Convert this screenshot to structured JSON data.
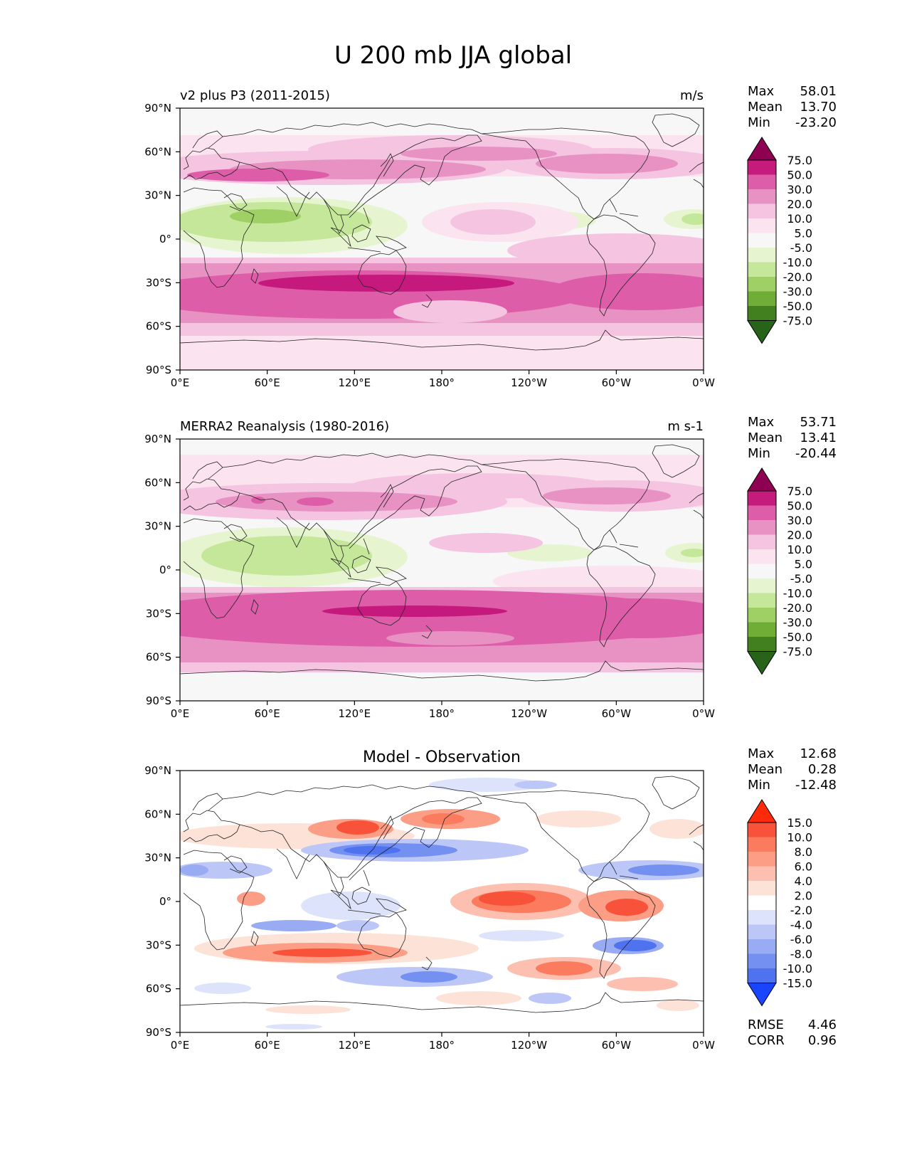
{
  "figure": {
    "title": "U 200 mb JJA global",
    "lat_ticks": [
      "90°N",
      "60°N",
      "30°N",
      "0°",
      "30°S",
      "60°S",
      "90°S"
    ],
    "lon_ticks": [
      "0°E",
      "60°E",
      "120°E",
      "180°",
      "120°W",
      "60°W",
      "0°W"
    ]
  },
  "panels": [
    {
      "id": "test",
      "left_title": "v2 plus P3 (2011-2015)",
      "center_title": "",
      "units": "m/s",
      "stats": [
        {
          "label": "Max",
          "value": "58.01"
        },
        {
          "label": "Mean",
          "value": "13.70"
        },
        {
          "label": "Min",
          "value": "-23.20"
        }
      ],
      "colorbar": {
        "labels": [
          "75.0",
          "50.0",
          "30.0",
          "20.0",
          "10.0",
          "5.0",
          "-5.0",
          "-10.0",
          "-20.0",
          "-30.0",
          "-50.0",
          "-75.0"
        ],
        "colors": [
          "#8e0152",
          "#c51b7d",
          "#de5da8",
          "#e792c3",
          "#f5c4e1",
          "#fbe3ef",
          "#f7f7f7",
          "#e6f5d0",
          "#c5e79a",
          "#9fd066",
          "#6fad36",
          "#417f1f",
          "#276419"
        ]
      },
      "extra_stats": []
    },
    {
      "id": "reference",
      "left_title": "MERRA2 Reanalysis (1980-2016)",
      "center_title": "",
      "units": "m s-1",
      "stats": [
        {
          "label": "Max",
          "value": "53.71"
        },
        {
          "label": "Mean",
          "value": "13.41"
        },
        {
          "label": "Min",
          "value": "-20.44"
        }
      ],
      "colorbar": {
        "labels": [
          "75.0",
          "50.0",
          "30.0",
          "20.0",
          "10.0",
          "5.0",
          "-5.0",
          "-10.0",
          "-20.0",
          "-30.0",
          "-50.0",
          "-75.0"
        ],
        "colors": [
          "#8e0152",
          "#c51b7d",
          "#de5da8",
          "#e792c3",
          "#f5c4e1",
          "#fbe3ef",
          "#f7f7f7",
          "#e6f5d0",
          "#c5e79a",
          "#9fd066",
          "#6fad36",
          "#417f1f",
          "#276419"
        ]
      },
      "extra_stats": []
    },
    {
      "id": "difference",
      "left_title": "",
      "center_title": "Model - Observation",
      "units": "",
      "stats": [
        {
          "label": "Max",
          "value": "12.68"
        },
        {
          "label": "Mean",
          "value": "0.28"
        },
        {
          "label": "Min",
          "value": "-12.48"
        }
      ],
      "colorbar": {
        "labels": [
          "15.0",
          "10.0",
          "8.0",
          "6.0",
          "4.0",
          "2.0",
          "-2.0",
          "-4.0",
          "-6.0",
          "-8.0",
          "-10.0",
          "-15.0"
        ],
        "colors": [
          "#ff2a0a",
          "#f8533a",
          "#fb7b5f",
          "#fc9d86",
          "#fdc0b0",
          "#fde2d8",
          "#ffffff",
          "#dde3fa",
          "#bcc7f7",
          "#98abf3",
          "#7490f0",
          "#4f73ee",
          "#1a45ff"
        ]
      },
      "extra_stats": [
        {
          "label": "RMSE",
          "value": "4.46"
        },
        {
          "label": "CORR",
          "value": "0.96"
        }
      ]
    }
  ]
}
